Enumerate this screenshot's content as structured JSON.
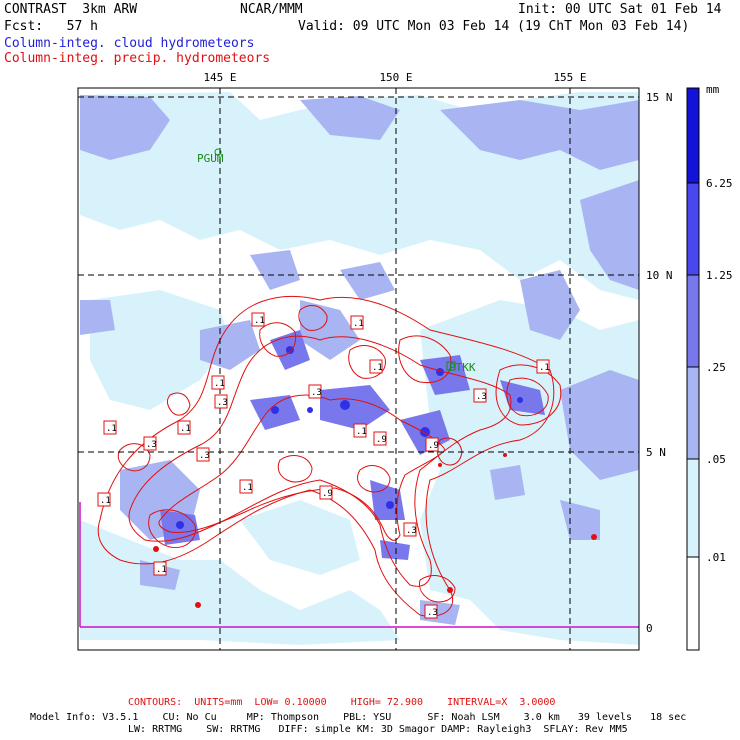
{
  "header": {
    "title": "CONTRAST  3km ARW",
    "org": "NCAR/MMM",
    "init": "Init: 00 UTC Sat 01 Feb 14",
    "fcst": "Fcst:   57 h",
    "valid": "Valid: 09 UTC Mon 03 Feb 14 (19 ChT Mon 03 Feb 14)",
    "field_cloud": "Column-integ. cloud hydrometeors",
    "field_precip": "Column-integ. precip. hydrometeors"
  },
  "map": {
    "lon_labels": [
      "145 E",
      "150 E",
      "155 E"
    ],
    "lat_labels": [
      "15 N",
      "10 N",
      "5 N",
      "0"
    ],
    "stations": [
      "PGUM",
      "PTKK"
    ],
    "contour_labels": [
      ".1",
      ".1",
      ".1",
      ".1",
      ".1",
      ".3",
      ".3",
      ".3",
      ".1",
      ".1",
      ".3",
      ".1",
      ".9",
      ".3",
      ".9",
      ".9",
      ".1",
      ".1",
      ".3",
      ".3",
      ".1"
    ]
  },
  "colorbar": {
    "unit": "mm",
    "levels": [
      "6.25",
      "1.25",
      ".25",
      ".05",
      ".01"
    ],
    "colors": [
      "#1212d8",
      "#4848ee",
      "#7878ec",
      "#a9b4f2",
      "#d8f2fb",
      "#ffffff"
    ]
  },
  "footer": {
    "contours": "CONTOURS:  UNITS=mm  LOW= 0.10000    HIGH= 72.900    INTERVAL=X  3.0000",
    "model_line1": "Model Info: V3.5.1    CU: No Cu     MP: Thompson    PBL: YSU      SF: Noah LSM    3.0 km   39 levels   18 sec",
    "model_line2": "LW: RRTMG    SW: RRTMG   DIFF: simple KM: 3D Smagor DAMP: Rayleigh3  SFLAY: Rev MM5"
  },
  "colors": {
    "cloud_text": "#1f1fd6",
    "precip_text": "#e01010",
    "contour": "#e01010",
    "station": "#1a8a1a",
    "boundary": "#d010d0"
  }
}
